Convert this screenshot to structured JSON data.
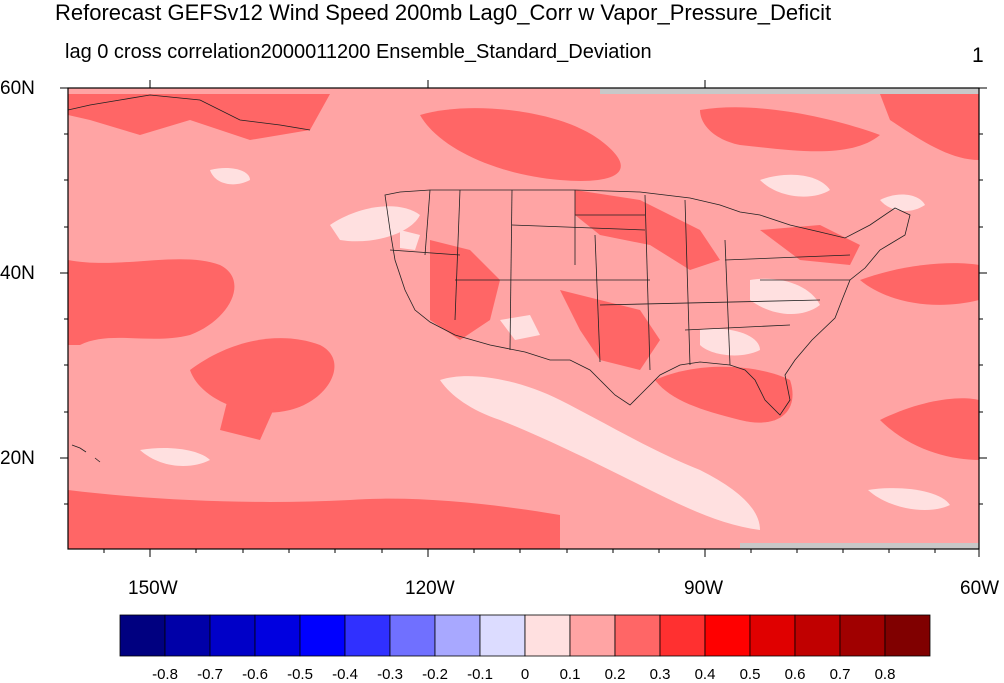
{
  "title": "Reforecast GEFSv12 Wind Speed 200mb Lag0_Corr w Vapor_Pressure_Deficit",
  "subtitle_left": "lag 0 cross correlation2000011200 Ensemble_Standard_Deviation",
  "subtitle_right": "1",
  "lat_labels": [
    "60N",
    "40N",
    "20N"
  ],
  "lon_labels": [
    "150W",
    "120W",
    "90W",
    "60W"
  ],
  "colorbar": {
    "colors": [
      "#000080",
      "#0000a8",
      "#0000c8",
      "#0000e0",
      "#0000ff",
      "#3030ff",
      "#7070ff",
      "#a8a8ff",
      "#dcdcff",
      "#ffe0e0",
      "#ffa4a4",
      "#ff6666",
      "#ff3030",
      "#ff0000",
      "#e00000",
      "#c00000",
      "#a00000",
      "#800000"
    ],
    "labels": [
      "-0.8",
      "-0.7",
      "-0.6",
      "-0.5",
      "-0.4",
      "-0.3",
      "-0.2",
      "-0.1",
      "0",
      "0.1",
      "0.2",
      "0.3",
      "0.4",
      "0.5",
      "0.6",
      "0.7",
      "0.8"
    ]
  },
  "field_colors": {
    "missing": "#c8c8c8",
    "level_0_0.1": "#ffe0e0",
    "level_0.1_0.2": "#ffa4a4",
    "level_0.2_0.3": "#ff6666"
  }
}
